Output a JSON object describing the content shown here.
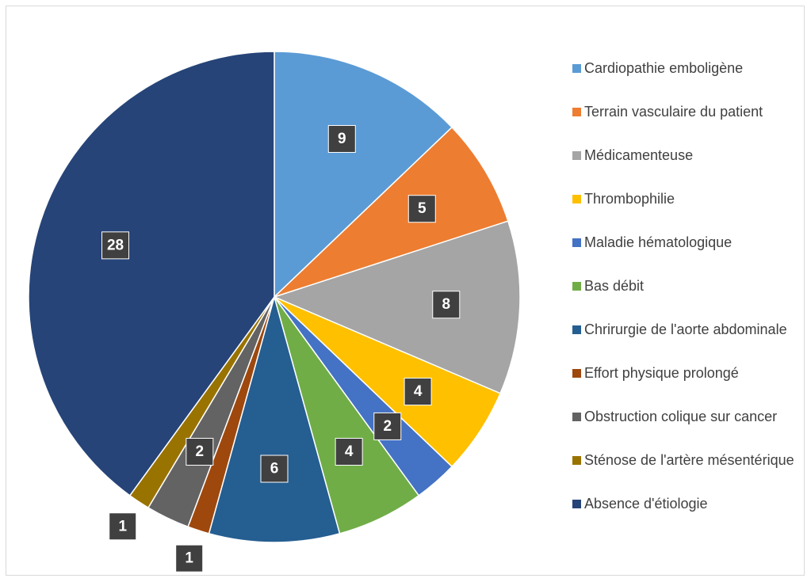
{
  "chart_data": {
    "type": "pie",
    "categories": [
      "Cardiopathie emboligène",
      "Terrain vasculaire du patient",
      "Médicamenteuse",
      "Thrombophilie",
      "Maladie hématologique",
      "Bas débit",
      "Chrirurgie de l'aorte abdominale",
      "Effort physique prolongé",
      "Obstruction colique sur cancer",
      "Sténose de l'artère mésentérique",
      "Absence d'étiologie"
    ],
    "values": [
      9,
      5,
      8,
      4,
      2,
      4,
      6,
      1,
      2,
      1,
      28
    ],
    "colors": [
      "#5b9bd5",
      "#ed7d31",
      "#a5a5a5",
      "#ffc000",
      "#4472c4",
      "#70ad47",
      "#255e91",
      "#9e480e",
      "#636363",
      "#997300",
      "#264478"
    ]
  }
}
